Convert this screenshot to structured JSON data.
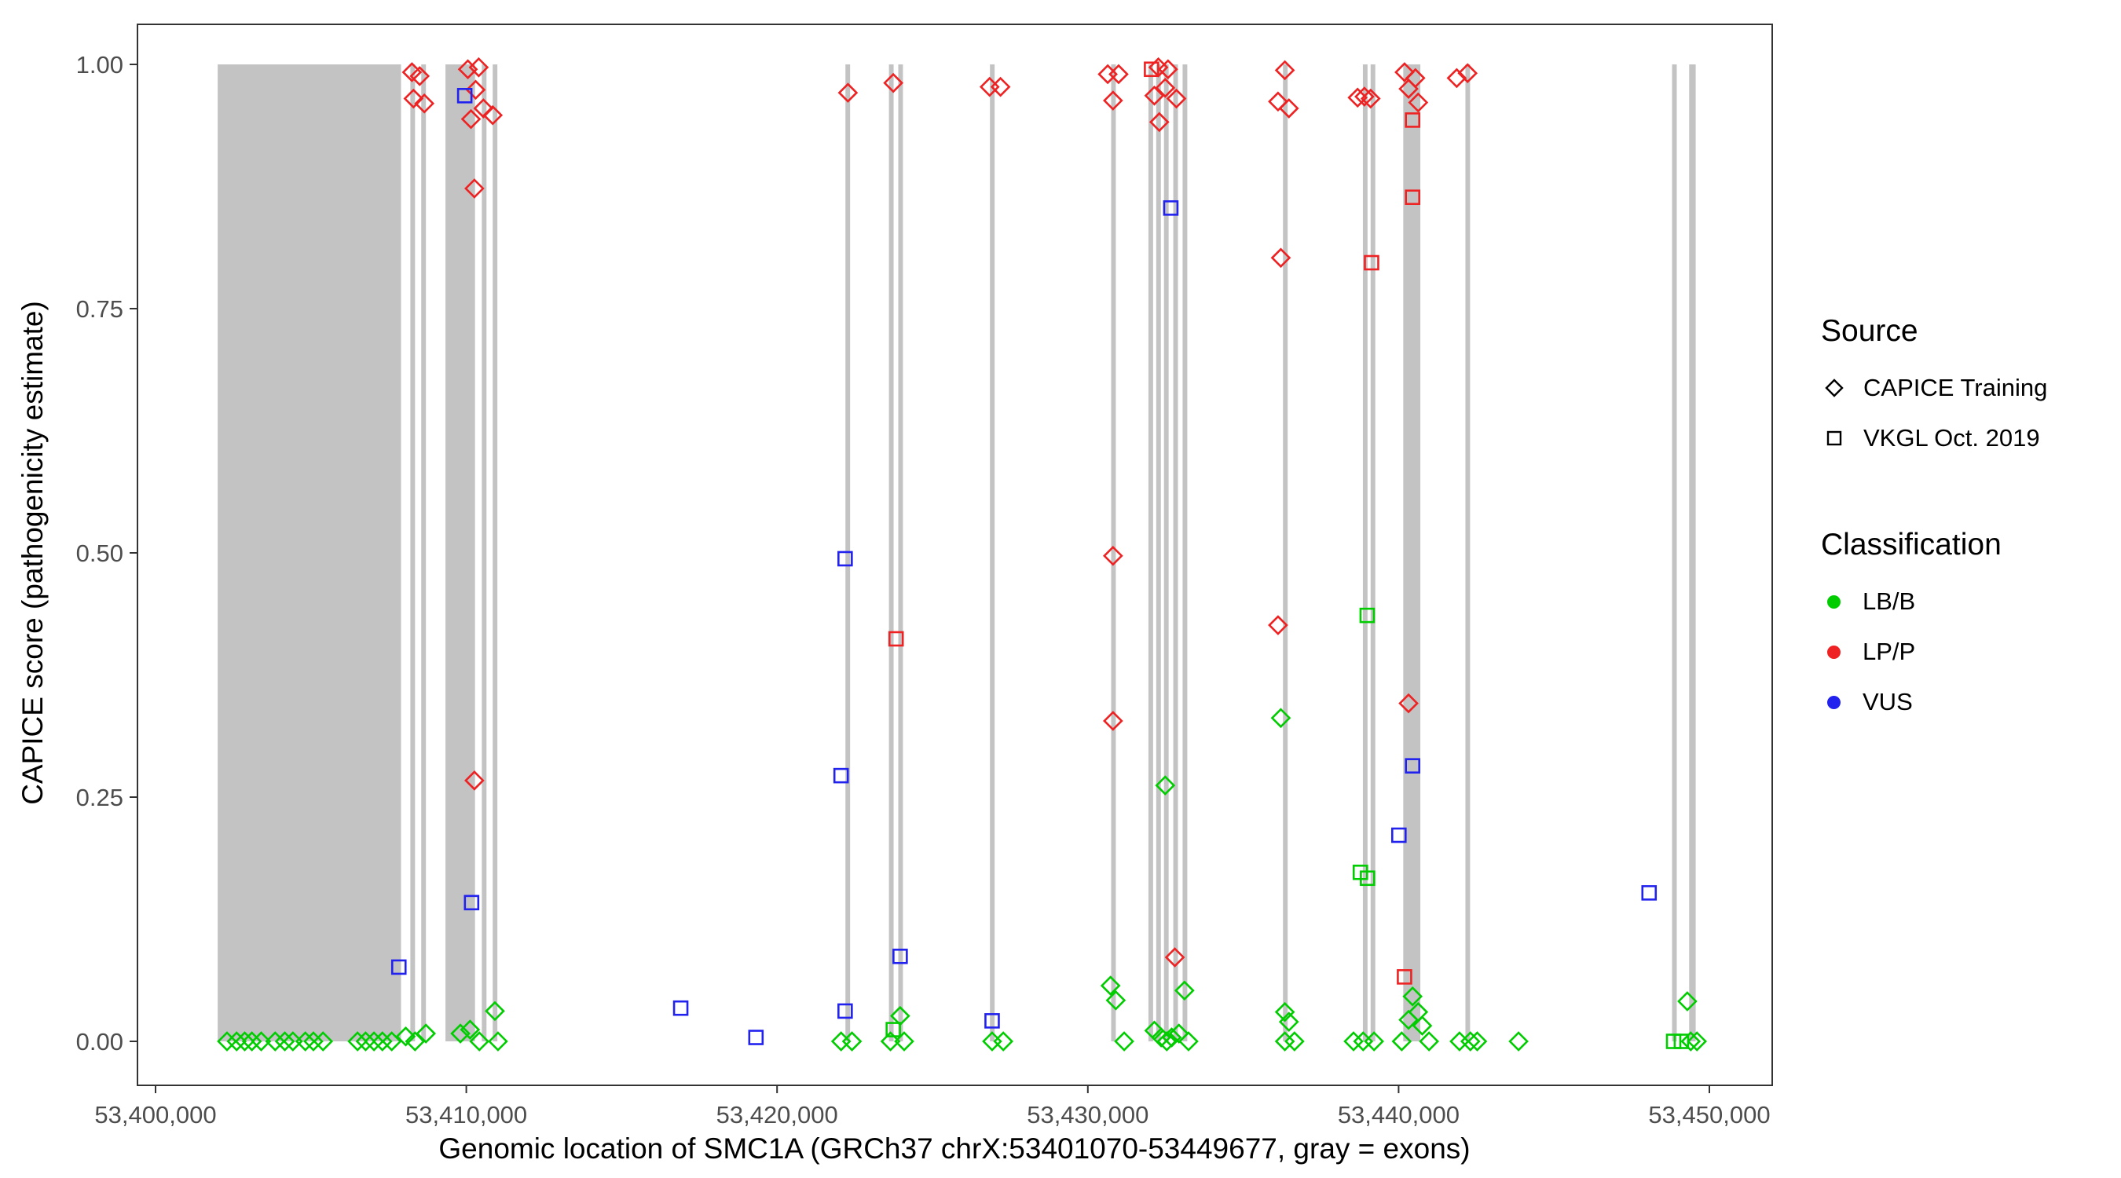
{
  "chart_data": {
    "type": "scatter",
    "title": "",
    "xlabel": "Genomic location of SMC1A (GRCh37 chrX:53401070-53449677, gray = exons)",
    "ylabel": "CAPICE score (pathogenicity estimate)",
    "x_ticks": [
      {
        "value": 53400000,
        "label": "53,400,000"
      },
      {
        "value": 53410000,
        "label": "53,410,000"
      },
      {
        "value": 53420000,
        "label": "53,420,000"
      },
      {
        "value": 53430000,
        "label": "53,430,000"
      },
      {
        "value": 53440000,
        "label": "53,440,000"
      },
      {
        "value": 53450000,
        "label": "53,450,000"
      }
    ],
    "y_ticks": [
      {
        "value": 0.0,
        "label": "0.00"
      },
      {
        "value": 0.25,
        "label": "0.25"
      },
      {
        "value": 0.5,
        "label": "0.50"
      },
      {
        "value": 0.75,
        "label": "0.75"
      },
      {
        "value": 1.0,
        "label": "1.00"
      }
    ],
    "ylim": [
      0,
      1
    ],
    "xlim": [
      53399400,
      53452000
    ],
    "grid": false,
    "exon_color": "#C3C3C3",
    "colors": {
      "LB/B": "#00CC00",
      "LP/P": "#EE2222",
      "VUS": "#2222EE"
    },
    "exons": [
      [
        53402000,
        53407900
      ],
      [
        53408200,
        53408350
      ],
      [
        53408550,
        53408700
      ],
      [
        53409330,
        53410280
      ],
      [
        53410500,
        53410650
      ],
      [
        53410850,
        53411000
      ],
      [
        53422200,
        53422350
      ],
      [
        53423600,
        53423750
      ],
      [
        53423900,
        53424050
      ],
      [
        53426850,
        53427000
      ],
      [
        53430750,
        53430900
      ],
      [
        53431950,
        53432100
      ],
      [
        53432200,
        53432350
      ],
      [
        53432450,
        53432600
      ],
      [
        53432750,
        53432900
      ],
      [
        53433050,
        53433200
      ],
      [
        53436280,
        53436430
      ],
      [
        53438850,
        53439000
      ],
      [
        53439100,
        53439250
      ],
      [
        53440150,
        53440700
      ],
      [
        53442150,
        53442300
      ],
      [
        53448800,
        53448950
      ],
      [
        53449350,
        53449560
      ]
    ],
    "point_format": [
      "genomic_position",
      "capice_score",
      "classification",
      "shape d=diamond(CAPICE Training) s=square(VKGL Oct. 2019)"
    ],
    "points": [
      [
        53402300,
        0.0,
        "LB/B",
        "d"
      ],
      [
        53402610,
        0.0,
        "LB/B",
        "d"
      ],
      [
        53402870,
        0.0,
        "LB/B",
        "d"
      ],
      [
        53403100,
        0.0,
        "LB/B",
        "d"
      ],
      [
        53403400,
        0.0,
        "LB/B",
        "d"
      ],
      [
        53403850,
        0.0,
        "LB/B",
        "d"
      ],
      [
        53404160,
        0.0,
        "LB/B",
        "d"
      ],
      [
        53404420,
        0.0,
        "LB/B",
        "d"
      ],
      [
        53404820,
        0.0,
        "LB/B",
        "d"
      ],
      [
        53405080,
        0.0,
        "LB/B",
        "d"
      ],
      [
        53405390,
        0.0,
        "LB/B",
        "d"
      ],
      [
        53406500,
        0.0,
        "LB/B",
        "d"
      ],
      [
        53406760,
        0.0,
        "LB/B",
        "d"
      ],
      [
        53407030,
        0.0,
        "LB/B",
        "d"
      ],
      [
        53407300,
        0.0,
        "LB/B",
        "d"
      ],
      [
        53407600,
        0.0,
        "LB/B",
        "d"
      ],
      [
        53408050,
        0.005,
        "LB/B",
        "d"
      ],
      [
        53408350,
        0.0,
        "LB/B",
        "d"
      ],
      [
        53408700,
        0.008,
        "LB/B",
        "d"
      ],
      [
        53407830,
        0.076,
        "VUS",
        "s"
      ],
      [
        53408250,
        0.992,
        "LP/P",
        "d"
      ],
      [
        53408500,
        0.988,
        "LP/P",
        "d"
      ],
      [
        53408300,
        0.965,
        "LP/P",
        "d"
      ],
      [
        53408650,
        0.96,
        "LP/P",
        "d"
      ],
      [
        53410050,
        0.995,
        "LP/P",
        "d"
      ],
      [
        53410400,
        0.997,
        "LP/P",
        "d"
      ],
      [
        53410300,
        0.974,
        "LP/P",
        "d"
      ],
      [
        53409950,
        0.968,
        "VUS",
        "s"
      ],
      [
        53410150,
        0.944,
        "LP/P",
        "d"
      ],
      [
        53410550,
        0.955,
        "LP/P",
        "d"
      ],
      [
        53410850,
        0.948,
        "LP/P",
        "d"
      ],
      [
        53410260,
        0.873,
        "LP/P",
        "d"
      ],
      [
        53410260,
        0.267,
        "LP/P",
        "d"
      ],
      [
        53410170,
        0.142,
        "VUS",
        "s"
      ],
      [
        53409810,
        0.008,
        "LB/B",
        "d"
      ],
      [
        53410120,
        0.012,
        "LB/B",
        "d"
      ],
      [
        53410420,
        0.0,
        "LB/B",
        "d"
      ],
      [
        53410920,
        0.031,
        "LB/B",
        "d"
      ],
      [
        53411020,
        0.0,
        "LB/B",
        "d"
      ],
      [
        53416900,
        0.034,
        "VUS",
        "s"
      ],
      [
        53419320,
        0.004,
        "VUS",
        "s"
      ],
      [
        53422280,
        0.971,
        "LP/P",
        "d"
      ],
      [
        53422190,
        0.494,
        "VUS",
        "s"
      ],
      [
        53422060,
        0.272,
        "VUS",
        "s"
      ],
      [
        53422190,
        0.031,
        "VUS",
        "s"
      ],
      [
        53422060,
        0.0,
        "LB/B",
        "d"
      ],
      [
        53422410,
        0.0,
        "LB/B",
        "d"
      ],
      [
        53423740,
        0.981,
        "LP/P",
        "d"
      ],
      [
        53423830,
        0.412,
        "LP/P",
        "s"
      ],
      [
        53423960,
        0.087,
        "VUS",
        "s"
      ],
      [
        53423960,
        0.026,
        "LB/B",
        "d"
      ],
      [
        53423740,
        0.012,
        "LB/B",
        "s"
      ],
      [
        53423650,
        0.0,
        "LB/B",
        "d"
      ],
      [
        53424090,
        0.0,
        "LB/B",
        "d"
      ],
      [
        53426840,
        0.977,
        "LP/P",
        "d"
      ],
      [
        53427190,
        0.977,
        "LP/P",
        "d"
      ],
      [
        53426920,
        0.021,
        "VUS",
        "s"
      ],
      [
        53426920,
        0.0,
        "LB/B",
        "d"
      ],
      [
        53427280,
        0.0,
        "LB/B",
        "d"
      ],
      [
        53430640,
        0.99,
        "LP/P",
        "d"
      ],
      [
        53430990,
        0.99,
        "LP/P",
        "d"
      ],
      [
        53430810,
        0.963,
        "LP/P",
        "d"
      ],
      [
        53430810,
        0.497,
        "LP/P",
        "d"
      ],
      [
        53430810,
        0.328,
        "LP/P",
        "d"
      ],
      [
        53430730,
        0.057,
        "LB/B",
        "d"
      ],
      [
        53430900,
        0.042,
        "LB/B",
        "d"
      ],
      [
        53431170,
        0.0,
        "LB/B",
        "d"
      ],
      [
        53432050,
        0.995,
        "LP/P",
        "s"
      ],
      [
        53432270,
        0.997,
        "LP/P",
        "d"
      ],
      [
        53432580,
        0.995,
        "LP/P",
        "d"
      ],
      [
        53432140,
        0.968,
        "LP/P",
        "d"
      ],
      [
        53432490,
        0.976,
        "LP/P",
        "d"
      ],
      [
        53432850,
        0.965,
        "LP/P",
        "d"
      ],
      [
        53432300,
        0.941,
        "LP/P",
        "d"
      ],
      [
        53432670,
        0.853,
        "VUS",
        "s"
      ],
      [
        53432490,
        0.262,
        "LB/B",
        "d"
      ],
      [
        53432800,
        0.086,
        "LP/P",
        "d"
      ],
      [
        53433110,
        0.052,
        "LB/B",
        "d"
      ],
      [
        53432140,
        0.011,
        "LB/B",
        "d"
      ],
      [
        53432360,
        0.004,
        "LB/B",
        "d"
      ],
      [
        53432540,
        0.0,
        "LB/B",
        "d"
      ],
      [
        53432700,
        0.004,
        "LB/B",
        "d"
      ],
      [
        53432930,
        0.008,
        "LB/B",
        "d"
      ],
      [
        53433240,
        0.0,
        "LB/B",
        "d"
      ],
      [
        53436340,
        0.994,
        "LP/P",
        "d"
      ],
      [
        53436120,
        0.962,
        "LP/P",
        "d"
      ],
      [
        53436470,
        0.955,
        "LP/P",
        "d"
      ],
      [
        53436210,
        0.802,
        "LP/P",
        "d"
      ],
      [
        53436120,
        0.426,
        "LP/P",
        "d"
      ],
      [
        53436210,
        0.331,
        "LB/B",
        "d"
      ],
      [
        53436340,
        0.03,
        "LB/B",
        "d"
      ],
      [
        53436470,
        0.02,
        "LB/B",
        "d"
      ],
      [
        53436340,
        0.0,
        "LB/B",
        "d"
      ],
      [
        53436650,
        0.0,
        "LB/B",
        "d"
      ],
      [
        53438680,
        0.966,
        "LP/P",
        "d"
      ],
      [
        53438900,
        0.967,
        "LP/P",
        "d"
      ],
      [
        53439100,
        0.965,
        "LP/P",
        "d"
      ],
      [
        53439130,
        0.797,
        "LP/P",
        "s"
      ],
      [
        53438990,
        0.436,
        "LB/B",
        "s"
      ],
      [
        53438770,
        0.173,
        "LB/B",
        "s"
      ],
      [
        53439000,
        0.167,
        "LB/B",
        "s"
      ],
      [
        53438550,
        0.0,
        "LB/B",
        "d"
      ],
      [
        53438860,
        0.0,
        "LB/B",
        "d"
      ],
      [
        53439210,
        0.0,
        "LB/B",
        "d"
      ],
      [
        53440190,
        0.992,
        "LP/P",
        "d"
      ],
      [
        53440540,
        0.986,
        "LP/P",
        "d"
      ],
      [
        53440320,
        0.975,
        "LP/P",
        "d"
      ],
      [
        53440630,
        0.961,
        "LP/P",
        "d"
      ],
      [
        53440450,
        0.943,
        "LP/P",
        "s"
      ],
      [
        53440450,
        0.864,
        "LP/P",
        "s"
      ],
      [
        53440320,
        0.346,
        "LP/P",
        "d"
      ],
      [
        53440450,
        0.282,
        "VUS",
        "s"
      ],
      [
        53440010,
        0.211,
        "VUS",
        "s"
      ],
      [
        53440190,
        0.066,
        "LP/P",
        "s"
      ],
      [
        53440450,
        0.046,
        "LB/B",
        "d"
      ],
      [
        53440630,
        0.03,
        "LB/B",
        "d"
      ],
      [
        53440320,
        0.022,
        "LB/B",
        "d"
      ],
      [
        53440760,
        0.016,
        "LB/B",
        "d"
      ],
      [
        53440100,
        0.0,
        "LB/B",
        "d"
      ],
      [
        53440980,
        0.0,
        "LB/B",
        "d"
      ],
      [
        53441870,
        0.986,
        "LP/P",
        "d"
      ],
      [
        53442220,
        0.991,
        "LP/P",
        "d"
      ],
      [
        53441960,
        0.0,
        "LB/B",
        "d"
      ],
      [
        53442310,
        0.0,
        "LB/B",
        "d"
      ],
      [
        53442530,
        0.0,
        "LB/B",
        "d"
      ],
      [
        53443860,
        0.0,
        "LB/B",
        "d"
      ],
      [
        53448060,
        0.152,
        "VUS",
        "s"
      ],
      [
        53449290,
        0.041,
        "LB/B",
        "d"
      ],
      [
        53448850,
        0.0,
        "LB/B",
        "s"
      ],
      [
        53449100,
        0.0,
        "LB/B",
        "s"
      ],
      [
        53449400,
        0.0,
        "LB/B",
        "d"
      ],
      [
        53449600,
        0.0,
        "LB/B",
        "d"
      ]
    ],
    "legend": {
      "source_title": "Source",
      "source_items": [
        {
          "label": "CAPICE Training",
          "shape": "diamond"
        },
        {
          "label": "VKGL Oct. 2019",
          "shape": "square"
        }
      ],
      "class_title": "Classification",
      "class_items": [
        {
          "label": "LB/B",
          "color": "#00CC00"
        },
        {
          "label": "LP/P",
          "color": "#EE2222"
        },
        {
          "label": "VUS",
          "color": "#2222EE"
        }
      ]
    }
  }
}
